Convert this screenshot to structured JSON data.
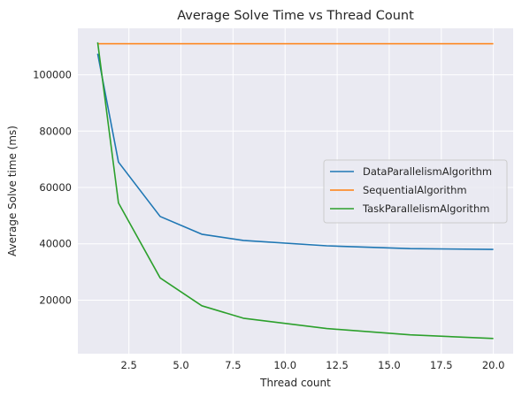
{
  "chart_data": {
    "type": "line",
    "title": "Average Solve Time vs Thread Count",
    "xlabel": "Thread count",
    "ylabel": "Average Solve time (ms)",
    "xlim": [
      0.05,
      20.95
    ],
    "ylim": [
      1000,
      116500
    ],
    "xticks": [
      2.5,
      5.0,
      7.5,
      10.0,
      12.5,
      15.0,
      17.5,
      20.0
    ],
    "xtick_labels": [
      "2.5",
      "5.0",
      "7.5",
      "10.0",
      "12.5",
      "15.0",
      "17.5",
      "20.0"
    ],
    "yticks": [
      20000,
      40000,
      60000,
      80000,
      100000
    ],
    "ytick_labels": [
      "20000",
      "40000",
      "60000",
      "80000",
      "100000"
    ],
    "grid": true,
    "legend_position": "center-right",
    "series": [
      {
        "name": "DataParallelismAlgorithm",
        "color": "#1f77b4",
        "x": [
          1,
          2,
          4,
          6,
          8,
          12,
          16,
          20
        ],
        "y": [
          107500,
          69000,
          49700,
          43400,
          41200,
          39300,
          38300,
          38000
        ]
      },
      {
        "name": "SequentialAlgorithm",
        "color": "#ff7f0e",
        "x": [
          1,
          2,
          4,
          6,
          8,
          12,
          16,
          20
        ],
        "y": [
          111000,
          111000,
          111000,
          111000,
          111000,
          111000,
          111000,
          111000
        ]
      },
      {
        "name": "TaskParallelismAlgorithm",
        "color": "#2ca02c",
        "x": [
          1,
          2,
          4,
          6,
          8,
          12,
          16,
          20
        ],
        "y": [
          111500,
          54500,
          27900,
          18000,
          13600,
          9900,
          7700,
          6400
        ]
      }
    ]
  }
}
